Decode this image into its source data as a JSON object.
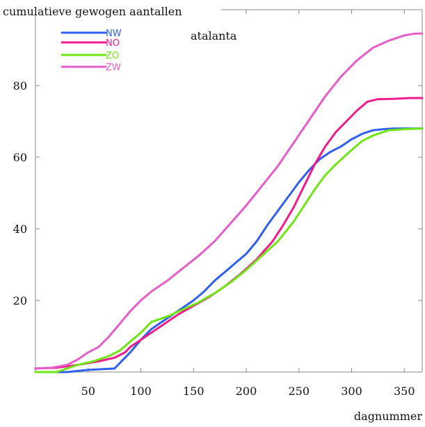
{
  "chart_data": {
    "type": "line",
    "title": "",
    "annotation": "atalanta",
    "ylabel": "cumulatieve gewogen aantallen",
    "xlabel": "dagnummer",
    "xlim": [
      0,
      367
    ],
    "ylim": [
      0,
      100
    ],
    "xticks": [
      50,
      100,
      150,
      200,
      250,
      300,
      350
    ],
    "yticks": [
      20,
      40,
      60,
      80
    ],
    "grid": false,
    "legend_position": "top-left",
    "series": [
      {
        "name": "NW",
        "color": "#2f5fee",
        "x": [
          0,
          30,
          50,
          75,
          80,
          90,
          100,
          110,
          120,
          135,
          150,
          160,
          170,
          180,
          190,
          200,
          210,
          220,
          230,
          240,
          250,
          260,
          270,
          280,
          290,
          300,
          310,
          320,
          330,
          340,
          350,
          367
        ],
        "y": [
          0,
          0,
          0.6,
          1.0,
          2.5,
          5.5,
          9.0,
          12.0,
          14.0,
          17.0,
          20.0,
          22.5,
          25.5,
          28.0,
          30.5,
          33.0,
          36.5,
          41.0,
          45.0,
          49.0,
          53.0,
          56.5,
          59.5,
          61.5,
          63.0,
          65.0,
          66.5,
          67.5,
          67.8,
          68.0,
          68.0,
          68.0
        ]
      },
      {
        "name": "NO",
        "color": "#f01a8a",
        "x": [
          0,
          20,
          40,
          60,
          75,
          85,
          90,
          100,
          110,
          120,
          135,
          150,
          165,
          180,
          195,
          210,
          225,
          235,
          245,
          255,
          265,
          275,
          285,
          295,
          305,
          315,
          325,
          340,
          355,
          367
        ],
        "y": [
          1.0,
          1.2,
          2.0,
          3.0,
          4.0,
          5.5,
          7.0,
          9.0,
          11.0,
          13.0,
          16.0,
          18.5,
          21.0,
          24.0,
          27.5,
          31.5,
          36.5,
          41.0,
          46.0,
          52.0,
          58.0,
          63.0,
          67.0,
          70.0,
          73.0,
          75.5,
          76.2,
          76.3,
          76.5,
          76.5
        ]
      },
      {
        "name": "ZO",
        "color": "#6ee614",
        "x": [
          0,
          20,
          40,
          55,
          70,
          80,
          90,
          100,
          105,
          110,
          125,
          140,
          155,
          170,
          185,
          200,
          215,
          230,
          245,
          255,
          265,
          275,
          285,
          300,
          310,
          320,
          335,
          350,
          367
        ],
        "y": [
          0,
          0,
          2.0,
          3.0,
          4.5,
          6.0,
          8.5,
          11.0,
          12.5,
          14.0,
          15.5,
          17.5,
          19.5,
          22.0,
          25.0,
          28.5,
          32.5,
          36.5,
          42.0,
          46.5,
          51.0,
          55.0,
          58.0,
          62.0,
          64.5,
          66.0,
          67.5,
          67.8,
          68.0
        ]
      },
      {
        "name": "ZW",
        "color": "#e65cc8",
        "x": [
          0,
          15,
          30,
          40,
          50,
          60,
          70,
          80,
          90,
          100,
          110,
          125,
          140,
          155,
          170,
          185,
          200,
          215,
          230,
          245,
          260,
          275,
          290,
          305,
          320,
          335,
          350,
          360,
          367
        ],
        "y": [
          1.0,
          1.2,
          2.0,
          3.5,
          5.5,
          7.0,
          10.0,
          13.5,
          17.0,
          20.0,
          22.5,
          25.5,
          29.0,
          32.5,
          36.5,
          41.5,
          46.5,
          52.0,
          57.5,
          64.0,
          70.5,
          77.0,
          82.5,
          87.0,
          90.5,
          92.5,
          94.0,
          94.5,
          94.5
        ]
      }
    ]
  }
}
